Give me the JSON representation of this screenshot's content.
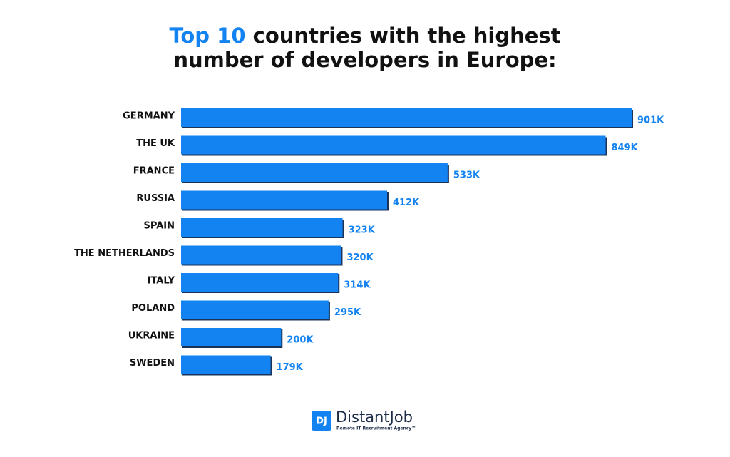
{
  "chart_data": {
    "type": "bar",
    "orientation": "horizontal",
    "title": {
      "highlight": "Top 10",
      "line1": "countries with the highest",
      "line2": "number of developers in Europe:"
    },
    "categories": [
      "GERMANY",
      "THE UK",
      "FRANCE",
      "RUSSIA",
      "SPAIN",
      "THE NETHERLANDS",
      "ITALY",
      "POLAND",
      "UKRAINE",
      "SWEDEN"
    ],
    "values": [
      901000,
      849000,
      533000,
      412000,
      323000,
      320000,
      314000,
      295000,
      200000,
      179000
    ],
    "value_labels": [
      "901K",
      "849K",
      "533K",
      "412K",
      "323K",
      "320K",
      "314K",
      "295K",
      "200K",
      "179K"
    ],
    "color": "#1283f0",
    "shadow_color": "#1b3358",
    "label_color": "#1283f0",
    "highlight_color": "#1283f0"
  },
  "footer": {
    "logo_mark": "DJ",
    "brand": "DistantJob",
    "tagline": "Remote IT Recruitment Agency™"
  }
}
